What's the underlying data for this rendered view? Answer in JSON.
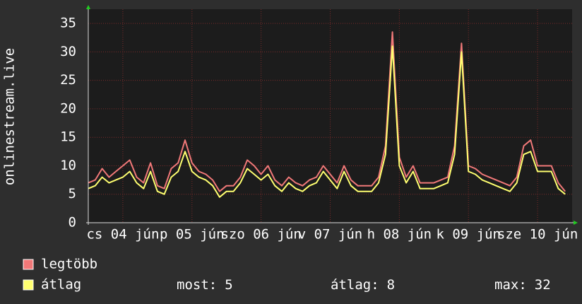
{
  "chart_data": {
    "type": "line",
    "y_label": "onlinestream.live",
    "x": [
      0,
      0.1,
      0.2,
      0.3,
      0.4,
      0.5,
      0.6,
      0.7,
      0.8,
      0.9,
      1,
      1.1,
      1.2,
      1.3,
      1.4,
      1.5,
      1.6,
      1.7,
      1.8,
      1.9,
      2,
      2.1,
      2.2,
      2.3,
      2.4,
      2.5,
      2.6,
      2.7,
      2.8,
      2.9,
      3,
      3.1,
      3.2,
      3.3,
      3.4,
      3.5,
      3.6,
      3.7,
      3.8,
      3.9,
      4,
      4.1,
      4.2,
      4.3,
      4.4,
      4.5,
      4.6,
      4.7,
      4.8,
      4.9,
      5,
      5.1,
      5.2,
      5.3,
      5.4,
      5.5,
      5.6,
      5.7,
      5.8,
      5.9,
      6,
      6.1,
      6.2,
      6.3,
      6.4,
      6.5,
      6.6,
      6.7,
      6.8,
      6.9
    ],
    "series": [
      {
        "name": "legtöbb",
        "color": "#f07878",
        "values": [
          7,
          7.5,
          9.5,
          8,
          9,
          10,
          11,
          8,
          7,
          10.5,
          6.5,
          6,
          9.5,
          10.5,
          14.5,
          10.5,
          9,
          8.5,
          7.5,
          5.5,
          6.5,
          6.5,
          8,
          11,
          10,
          8.5,
          10,
          7.5,
          6.5,
          8,
          7,
          6.5,
          7.5,
          8,
          10,
          8.5,
          7,
          10,
          7.5,
          6.5,
          6.5,
          6.5,
          8,
          13.5,
          33.5,
          11.5,
          8,
          10,
          7,
          7,
          7,
          7.5,
          8,
          13.5,
          31.5,
          10,
          9.5,
          8.5,
          8,
          7.5,
          7,
          6.5,
          8,
          13.5,
          14.5,
          10,
          10,
          10,
          7,
          5.5
        ]
      },
      {
        "name": "átlag",
        "color": "#ffff70",
        "values": [
          6,
          6.5,
          8,
          7,
          7.5,
          8,
          9,
          7,
          6,
          9,
          5.5,
          5,
          8,
          9,
          12.5,
          9,
          8,
          7.5,
          6.5,
          4.5,
          5.5,
          5.5,
          7,
          9.5,
          8.5,
          7.5,
          8.5,
          6.5,
          5.5,
          7,
          6,
          5.5,
          6.5,
          7,
          9,
          7.5,
          6,
          9,
          6.5,
          5.5,
          5.5,
          5.5,
          7,
          12,
          31,
          10,
          7,
          9,
          6,
          6,
          6,
          6.5,
          7,
          12,
          30,
          9,
          8.5,
          7.5,
          7,
          6.5,
          6,
          5.5,
          7,
          12,
          12.5,
          9,
          9,
          9,
          6,
          5
        ]
      }
    ],
    "xlim": [
      0,
      7
    ],
    "xticks": [
      {
        "value": 0.5,
        "label": "cs 04 jún"
      },
      {
        "value": 1.5,
        "label": "p 05 jún"
      },
      {
        "value": 2.5,
        "label": "szo 06 jún"
      },
      {
        "value": 3.5,
        "label": "v 07 jún"
      },
      {
        "value": 4.5,
        "label": "h 08 jún"
      },
      {
        "value": 5.5,
        "label": "k 09 jún"
      },
      {
        "value": 6.5,
        "label": "sze 10 jún"
      }
    ],
    "ylim": [
      0,
      37.5
    ],
    "yticks": [
      0,
      5,
      10,
      15,
      20,
      25,
      30,
      35
    ],
    "grid": true,
    "stats": [
      {
        "label": "most:",
        "value": 5
      },
      {
        "label": "átlag:",
        "value": 8
      },
      {
        "label": "max:",
        "value": 32
      }
    ]
  }
}
